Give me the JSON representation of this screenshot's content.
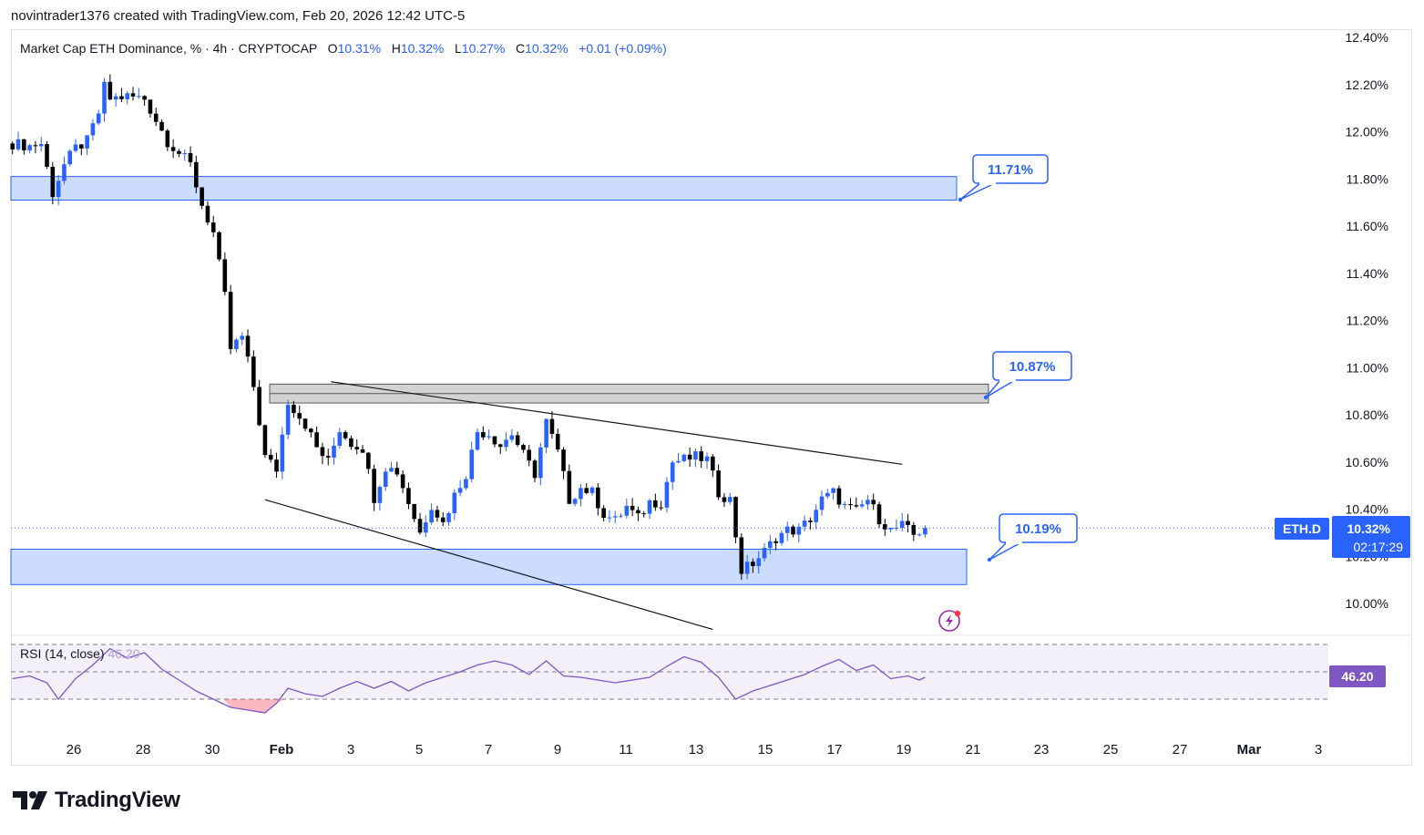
{
  "header": {
    "created_line": "novintrader1376 created with TradingView.com, Feb 20, 2026 12:42 UTC-5"
  },
  "legend": {
    "symbol": "Market Cap ETH Dominance, % · 4h · CRYPTOCAP",
    "o_label": "O",
    "o_value": "10.31%",
    "h_label": "H",
    "h_value": "10.32%",
    "l_label": "L",
    "l_value": "10.27%",
    "c_label": "C",
    "c_value": "10.32%",
    "change": "+0.01 (+0.09%)"
  },
  "rsi_legend": {
    "label": "RSI (14, close)",
    "value": "46.20"
  },
  "price_badge": {
    "ticker": "ETH.D",
    "price": "10.32%",
    "countdown": "02:17:29"
  },
  "rsi_badge": {
    "value": "46.20"
  },
  "watermark": {
    "text": "TradingView"
  },
  "colors": {
    "up": "#2962ff",
    "down": "#000000",
    "zone": "#bbd0fb",
    "zone_border": "#2962ff",
    "grey_zone": "#cfcfcf",
    "rsi": "#7e57c2",
    "badge": "#2962ff"
  },
  "icons": {
    "logo": "tradingview-logo-icon",
    "alert": "lightning-alert-icon"
  },
  "chart_data": {
    "type": "candlestick",
    "symbol": "ETH.D",
    "timeframe": "4h",
    "y_axis": {
      "ticks": [
        "12.40%",
        "12.20%",
        "12.00%",
        "11.80%",
        "11.60%",
        "11.40%",
        "11.20%",
        "11.00%",
        "10.80%",
        "10.60%",
        "10.40%",
        "10.20%",
        "10.00%"
      ],
      "range": [
        9.9,
        12.42
      ]
    },
    "x_axis": {
      "ticks": [
        "26",
        "28",
        "30",
        "Feb",
        "3",
        "5",
        "7",
        "9",
        "11",
        "13",
        "15",
        "17",
        "19",
        "21",
        "23",
        "25",
        "27",
        "Mar",
        "3"
      ],
      "range_days": [
        "Jan 25",
        "Mar 3"
      ]
    },
    "last_price": 10.32,
    "close_path": [
      {
        "t": "Jan 25 00:00",
        "v": 11.95
      },
      {
        "t": "Jan 25 12:00",
        "v": 11.94
      },
      {
        "t": "Jan 25 20:00",
        "v": 11.95
      },
      {
        "t": "Jan 26 04:00",
        "v": 11.74
      },
      {
        "t": "Jan 26 12:00",
        "v": 11.86
      },
      {
        "t": "Jan 26 20:00",
        "v": 11.93
      },
      {
        "t": "Jan 27 04:00",
        "v": 11.96
      },
      {
        "t": "Jan 27 12:00",
        "v": 12.08
      },
      {
        "t": "Jan 27 16:00",
        "v": 12.19
      },
      {
        "t": "Jan 27 20:00",
        "v": 12.14
      },
      {
        "t": "Jan 28 08:00",
        "v": 12.15
      },
      {
        "t": "Jan 28 20:00",
        "v": 12.14
      },
      {
        "t": "Jan 29 04:00",
        "v": 12.05
      },
      {
        "t": "Jan 29 12:00",
        "v": 11.96
      },
      {
        "t": "Jan 29 20:00",
        "v": 11.91
      },
      {
        "t": "Jan 30 04:00",
        "v": 11.86
      },
      {
        "t": "Jan 30 12:00",
        "v": 11.69
      },
      {
        "t": "Jan 30 20:00",
        "v": 11.57
      },
      {
        "t": "Jan 31 04:00",
        "v": 11.3
      },
      {
        "t": "Jan 31 08:00",
        "v": 11.08
      },
      {
        "t": "Jan 31 16:00",
        "v": 11.13
      },
      {
        "t": "Feb 1 00:00",
        "v": 10.92
      },
      {
        "t": "Feb 1 08:00",
        "v": 10.62
      },
      {
        "t": "Feb 1 16:00",
        "v": 10.57
      },
      {
        "t": "Feb 2 00:00",
        "v": 10.86
      },
      {
        "t": "Feb 2 12:00",
        "v": 10.76
      },
      {
        "t": "Feb 2 20:00",
        "v": 10.66
      },
      {
        "t": "Feb 3 04:00",
        "v": 10.6
      },
      {
        "t": "Feb 3 12:00",
        "v": 10.74
      },
      {
        "t": "Feb 3 20:00",
        "v": 10.68
      },
      {
        "t": "Feb 4 04:00",
        "v": 10.66
      },
      {
        "t": "Feb 4 12:00",
        "v": 10.45
      },
      {
        "t": "Feb 4 20:00",
        "v": 10.58
      },
      {
        "t": "Feb 5 04:00",
        "v": 10.56
      },
      {
        "t": "Feb 5 12:00",
        "v": 10.43
      },
      {
        "t": "Feb 5 20:00",
        "v": 10.3
      },
      {
        "t": "Feb 6 04:00",
        "v": 10.42
      },
      {
        "t": "Feb 6 12:00",
        "v": 10.34
      },
      {
        "t": "Feb 6 20:00",
        "v": 10.46
      },
      {
        "t": "Feb 7 04:00",
        "v": 10.55
      },
      {
        "t": "Feb 7 12:00",
        "v": 10.73
      },
      {
        "t": "Feb 7 20:00",
        "v": 10.72
      },
      {
        "t": "Feb 8 04:00",
        "v": 10.67
      },
      {
        "t": "Feb 8 12:00",
        "v": 10.72
      },
      {
        "t": "Feb 8 20:00",
        "v": 10.63
      },
      {
        "t": "Feb 9 04:00",
        "v": 10.55
      },
      {
        "t": "Feb 9 12:00",
        "v": 10.77
      },
      {
        "t": "Feb 9 20:00",
        "v": 10.64
      },
      {
        "t": "Feb 10 04:00",
        "v": 10.44
      },
      {
        "t": "Feb 10 12:00",
        "v": 10.49
      },
      {
        "t": "Feb 10 20:00",
        "v": 10.47
      },
      {
        "t": "Feb 11 04:00",
        "v": 10.38
      },
      {
        "t": "Feb 11 12:00",
        "v": 10.35
      },
      {
        "t": "Feb 11 20:00",
        "v": 10.41
      },
      {
        "t": "Feb 12 04:00",
        "v": 10.36
      },
      {
        "t": "Feb 12 12:00",
        "v": 10.43
      },
      {
        "t": "Feb 12 20:00",
        "v": 10.43
      },
      {
        "t": "Feb 13 04:00",
        "v": 10.6
      },
      {
        "t": "Feb 13 12:00",
        "v": 10.61
      },
      {
        "t": "Feb 13 20:00",
        "v": 10.62
      },
      {
        "t": "Feb 14 04:00",
        "v": 10.61
      },
      {
        "t": "Feb 14 12:00",
        "v": 10.47
      },
      {
        "t": "Feb 14 20:00",
        "v": 10.44
      },
      {
        "t": "Feb 15 04:00",
        "v": 10.14
      },
      {
        "t": "Feb 15 12:00",
        "v": 10.17
      },
      {
        "t": "Feb 15 20:00",
        "v": 10.22
      },
      {
        "t": "Feb 16 04:00",
        "v": 10.28
      },
      {
        "t": "Feb 16 12:00",
        "v": 10.31
      },
      {
        "t": "Feb 16 20:00",
        "v": 10.31
      },
      {
        "t": "Feb 17 04:00",
        "v": 10.36
      },
      {
        "t": "Feb 17 12:00",
        "v": 10.44
      },
      {
        "t": "Feb 17 20:00",
        "v": 10.47
      },
      {
        "t": "Feb 18 04:00",
        "v": 10.41
      },
      {
        "t": "Feb 18 12:00",
        "v": 10.39
      },
      {
        "t": "Feb 18 20:00",
        "v": 10.44
      },
      {
        "t": "Feb 19 04:00",
        "v": 10.36
      },
      {
        "t": "Feb 19 12:00",
        "v": 10.31
      },
      {
        "t": "Feb 19 20:00",
        "v": 10.33
      },
      {
        "t": "Feb 20 04:00",
        "v": 10.29
      },
      {
        "t": "Feb 20 12:00",
        "v": 10.32
      }
    ],
    "zones": [
      {
        "kind": "resistance",
        "low": 11.71,
        "high": 11.81,
        "label": "11.71%",
        "color": "#bbd0fb"
      },
      {
        "kind": "resistance",
        "low": 10.85,
        "high": 10.93,
        "label": "10.87%",
        "color": "#cfcfcf"
      },
      {
        "kind": "support",
        "low": 10.08,
        "high": 10.23,
        "label": "10.19%",
        "color": "#bbd0fb"
      }
    ],
    "trendlines": [
      {
        "name": "upper",
        "from": {
          "t": "Feb 3 06:00",
          "v": 10.94
        },
        "to": {
          "t": "Feb 19 20:00",
          "v": 10.59
        }
      },
      {
        "name": "lower",
        "from": {
          "t": "Feb 1 08:00",
          "v": 10.44
        },
        "to": {
          "t": "Feb 14 08:00",
          "v": 9.89
        }
      }
    ],
    "rsi": {
      "period": 14,
      "source": "close",
      "current": 46.2,
      "bands": [
        30,
        50,
        70
      ],
      "path": [
        {
          "t": "Jan 25 00:00",
          "v": 45
        },
        {
          "t": "Jan 25 12:00",
          "v": 47
        },
        {
          "t": "Jan 26 00:00",
          "v": 42
        },
        {
          "t": "Jan 26 08:00",
          "v": 30
        },
        {
          "t": "Jan 26 20:00",
          "v": 45
        },
        {
          "t": "Jan 27 08:00",
          "v": 55
        },
        {
          "t": "Jan 27 20:00",
          "v": 67
        },
        {
          "t": "Jan 28 08:00",
          "v": 60
        },
        {
          "t": "Jan 28 20:00",
          "v": 64
        },
        {
          "t": "Jan 29 08:00",
          "v": 52
        },
        {
          "t": "Jan 29 20:00",
          "v": 44
        },
        {
          "t": "Jan 30 08:00",
          "v": 36
        },
        {
          "t": "Jan 30 20:00",
          "v": 30
        },
        {
          "t": "Jan 31 08:00",
          "v": 24
        },
        {
          "t": "Jan 31 20:00",
          "v": 22
        },
        {
          "t": "Feb 1 08:00",
          "v": 20
        },
        {
          "t": "Feb 1 16:00",
          "v": 27
        },
        {
          "t": "Feb 2 00:00",
          "v": 38
        },
        {
          "t": "Feb 2 12:00",
          "v": 34
        },
        {
          "t": "Feb 3 00:00",
          "v": 32
        },
        {
          "t": "Feb 3 12:00",
          "v": 38
        },
        {
          "t": "Feb 4 00:00",
          "v": 43
        },
        {
          "t": "Feb 4 12:00",
          "v": 38
        },
        {
          "t": "Feb 5 00:00",
          "v": 43
        },
        {
          "t": "Feb 5 12:00",
          "v": 36
        },
        {
          "t": "Feb 6 00:00",
          "v": 42
        },
        {
          "t": "Feb 6 12:00",
          "v": 46
        },
        {
          "t": "Feb 7 00:00",
          "v": 50
        },
        {
          "t": "Feb 7 12:00",
          "v": 55
        },
        {
          "t": "Feb 8 00:00",
          "v": 58
        },
        {
          "t": "Feb 8 12:00",
          "v": 55
        },
        {
          "t": "Feb 9 00:00",
          "v": 48
        },
        {
          "t": "Feb 9 12:00",
          "v": 58
        },
        {
          "t": "Feb 10 00:00",
          "v": 47
        },
        {
          "t": "Feb 10 12:00",
          "v": 46
        },
        {
          "t": "Feb 11 00:00",
          "v": 44
        },
        {
          "t": "Feb 11 12:00",
          "v": 42
        },
        {
          "t": "Feb 12 00:00",
          "v": 44
        },
        {
          "t": "Feb 12 12:00",
          "v": 46
        },
        {
          "t": "Feb 13 00:00",
          "v": 54
        },
        {
          "t": "Feb 13 12:00",
          "v": 61
        },
        {
          "t": "Feb 14 00:00",
          "v": 57
        },
        {
          "t": "Feb 14 12:00",
          "v": 46
        },
        {
          "t": "Feb 15 00:00",
          "v": 30
        },
        {
          "t": "Feb 15 12:00",
          "v": 36
        },
        {
          "t": "Feb 16 00:00",
          "v": 40
        },
        {
          "t": "Feb 16 12:00",
          "v": 44
        },
        {
          "t": "Feb 17 00:00",
          "v": 48
        },
        {
          "t": "Feb 17 12:00",
          "v": 54
        },
        {
          "t": "Feb 18 00:00",
          "v": 59
        },
        {
          "t": "Feb 18 12:00",
          "v": 51
        },
        {
          "t": "Feb 19 00:00",
          "v": 55
        },
        {
          "t": "Feb 19 12:00",
          "v": 45
        },
        {
          "t": "Feb 20 00:00",
          "v": 47
        },
        {
          "t": "Feb 20 08:00",
          "v": 44
        },
        {
          "t": "Feb 20 12:00",
          "v": 46
        }
      ]
    }
  }
}
